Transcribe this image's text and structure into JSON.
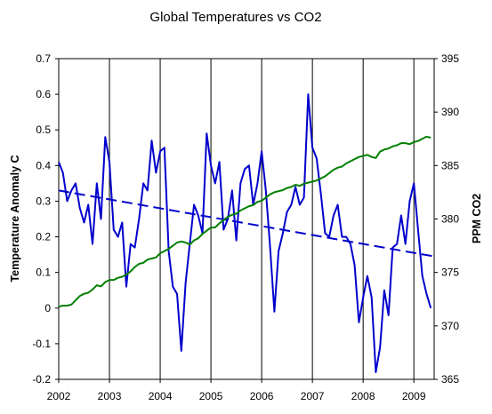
{
  "chart_data": {
    "type": "line",
    "title": "Global Temperatures vs CO2",
    "xlabel": "",
    "ylabel_left": "Temperature Anomaly C",
    "ylabel_right": "PPM CO2",
    "xlim": [
      2002.0,
      2009.4
    ],
    "ylim_left": [
      -0.2,
      0.7
    ],
    "ylim_right": [
      365,
      395
    ],
    "x_tick_labels": [
      "2002",
      "2003",
      "2004",
      "2005",
      "2006",
      "2007",
      "2008",
      "2009"
    ],
    "y_left_tick_labels": [
      "-0.2",
      "-0.1",
      "0",
      "0.1",
      "0.2",
      "0.3",
      "0.4",
      "0.5",
      "0.6",
      "0.7"
    ],
    "y_right_tick_labels": [
      "365",
      "370",
      "375",
      "380",
      "385",
      "390",
      "395"
    ],
    "grid": "vertical",
    "legend": "none",
    "series": [
      {
        "axis": "left",
        "style": "solid",
        "color": "#0000cc",
        "x": [
          2002.0,
          2002.083,
          2002.167,
          2002.25,
          2002.333,
          2002.417,
          2002.5,
          2002.583,
          2002.667,
          2002.75,
          2002.833,
          2002.917,
          2003.0,
          2003.083,
          2003.167,
          2003.25,
          2003.333,
          2003.417,
          2003.5,
          2003.583,
          2003.667,
          2003.75,
          2003.833,
          2003.917,
          2004.0,
          2004.083,
          2004.167,
          2004.25,
          2004.333,
          2004.417,
          2004.5,
          2004.583,
          2004.667,
          2004.75,
          2004.833,
          2004.917,
          2005.0,
          2005.083,
          2005.167,
          2005.25,
          2005.333,
          2005.417,
          2005.5,
          2005.583,
          2005.667,
          2005.75,
          2005.833,
          2005.917,
          2006.0,
          2006.083,
          2006.167,
          2006.25,
          2006.333,
          2006.417,
          2006.5,
          2006.583,
          2006.667,
          2006.75,
          2006.833,
          2006.917,
          2007.0,
          2007.083,
          2007.167,
          2007.25,
          2007.333,
          2007.417,
          2007.5,
          2007.583,
          2007.667,
          2007.75,
          2007.833,
          2007.917,
          2008.0,
          2008.083,
          2008.167,
          2008.25,
          2008.333,
          2008.417,
          2008.5,
          2008.583,
          2008.667,
          2008.75,
          2008.833,
          2008.917,
          2009.0,
          2009.083,
          2009.167,
          2009.25,
          2009.333
        ],
        "y": [
          0.41,
          0.38,
          0.3,
          0.33,
          0.35,
          0.28,
          0.24,
          0.29,
          0.18,
          0.35,
          0.25,
          0.48,
          0.41,
          0.22,
          0.2,
          0.24,
          0.06,
          0.18,
          0.17,
          0.25,
          0.35,
          0.33,
          0.47,
          0.38,
          0.44,
          0.45,
          0.16,
          0.06,
          0.04,
          -0.12,
          0.07,
          0.18,
          0.29,
          0.26,
          0.21,
          0.49,
          0.4,
          0.35,
          0.41,
          0.22,
          0.25,
          0.33,
          0.19,
          0.35,
          0.39,
          0.4,
          0.29,
          0.35,
          0.44,
          0.33,
          0.17,
          -0.01,
          0.16,
          0.21,
          0.27,
          0.29,
          0.34,
          0.29,
          0.31,
          0.6,
          0.45,
          0.42,
          0.32,
          0.21,
          0.2,
          0.26,
          0.29,
          0.2,
          0.2,
          0.18,
          0.12,
          -0.04,
          0.03,
          0.09,
          0.03,
          -0.18,
          -0.11,
          0.05,
          -0.02,
          0.17,
          0.18,
          0.26,
          0.18,
          0.3,
          0.35,
          0.22,
          0.09,
          0.04,
          0.0
        ]
      },
      {
        "axis": "left",
        "style": "dashed",
        "color": "#0000cc",
        "x": [
          2002.0,
          2009.4
        ],
        "y": [
          0.33,
          0.145
        ]
      },
      {
        "axis": "right",
        "style": "solid",
        "color": "#008000",
        "x": [
          2002.0,
          2002.083,
          2002.167,
          2002.25,
          2002.333,
          2002.417,
          2002.5,
          2002.583,
          2002.667,
          2002.75,
          2002.833,
          2002.917,
          2003.0,
          2003.083,
          2003.167,
          2003.25,
          2003.333,
          2003.417,
          2003.5,
          2003.583,
          2003.667,
          2003.75,
          2003.833,
          2003.917,
          2004.0,
          2004.083,
          2004.167,
          2004.25,
          2004.333,
          2004.417,
          2004.5,
          2004.583,
          2004.667,
          2004.75,
          2004.833,
          2004.917,
          2005.0,
          2005.083,
          2005.167,
          2005.25,
          2005.333,
          2005.417,
          2005.5,
          2005.583,
          2005.667,
          2005.75,
          2005.833,
          2005.917,
          2006.0,
          2006.083,
          2006.167,
          2006.25,
          2006.333,
          2006.417,
          2006.5,
          2006.583,
          2006.667,
          2006.75,
          2006.833,
          2006.917,
          2007.0,
          2007.083,
          2007.167,
          2007.25,
          2007.333,
          2007.417,
          2007.5,
          2007.583,
          2007.667,
          2007.75,
          2007.833,
          2007.917,
          2008.0,
          2008.083,
          2008.167,
          2008.25,
          2008.333,
          2008.417,
          2008.5,
          2008.583,
          2008.667,
          2008.75,
          2008.833,
          2008.917,
          2009.0,
          2009.083,
          2009.167,
          2009.25,
          2009.333
        ],
        "y": [
          371.8,
          371.9,
          371.9,
          372.0,
          372.4,
          372.8,
          373.0,
          373.1,
          373.4,
          373.8,
          373.7,
          374.1,
          374.3,
          374.3,
          374.5,
          374.6,
          374.8,
          375.1,
          375.5,
          375.8,
          375.9,
          376.2,
          376.3,
          376.4,
          376.8,
          377.0,
          377.2,
          377.5,
          377.8,
          377.9,
          377.8,
          377.6,
          378.0,
          378.2,
          378.6,
          378.9,
          379.2,
          379.2,
          379.6,
          379.9,
          380.2,
          380.4,
          380.5,
          380.8,
          381.0,
          381.2,
          381.3,
          381.6,
          381.7,
          382.0,
          382.3,
          382.5,
          382.6,
          382.7,
          382.9,
          383.0,
          383.2,
          383.1,
          383.3,
          383.4,
          383.5,
          383.6,
          383.8,
          384.0,
          384.3,
          384.6,
          384.8,
          384.9,
          385.2,
          385.4,
          385.6,
          385.8,
          385.9,
          386.0,
          385.8,
          385.7,
          386.3,
          386.5,
          386.6,
          386.8,
          386.9,
          387.1,
          387.1,
          387.0,
          387.2,
          387.3,
          387.5,
          387.7,
          387.6
        ]
      }
    ]
  }
}
